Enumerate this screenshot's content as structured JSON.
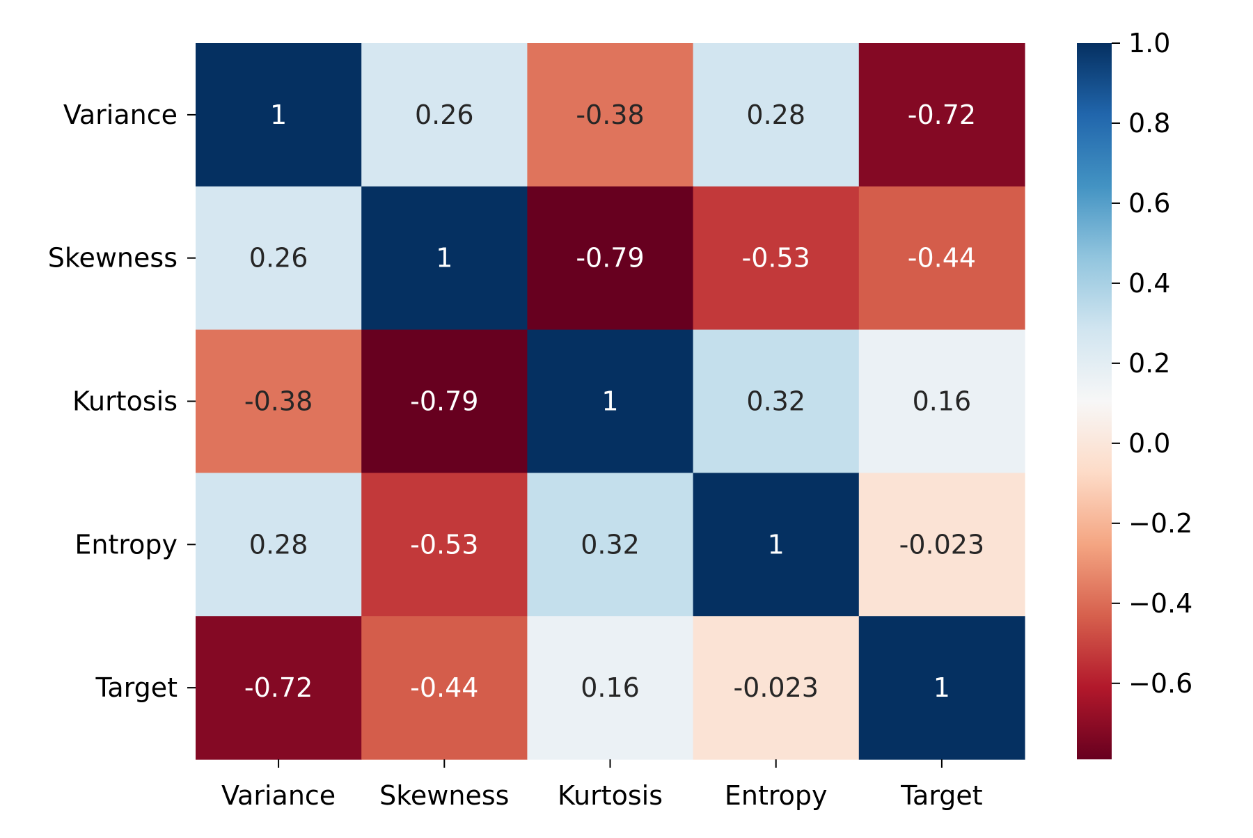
{
  "chart_data": {
    "type": "heatmap",
    "title": "",
    "xlabel": "",
    "ylabel": "",
    "x_categories": [
      "Variance",
      "Skewness",
      "Kurtosis",
      "Entropy",
      "Target"
    ],
    "y_categories": [
      "Variance",
      "Skewness",
      "Kurtosis",
      "Entropy",
      "Target"
    ],
    "values": [
      [
        1,
        0.26,
        -0.38,
        0.28,
        -0.72
      ],
      [
        0.26,
        1,
        -0.79,
        -0.53,
        -0.44
      ],
      [
        -0.38,
        -0.79,
        1,
        0.32,
        0.16
      ],
      [
        0.28,
        -0.53,
        0.32,
        1,
        -0.023
      ],
      [
        -0.72,
        -0.44,
        0.16,
        -0.023,
        1
      ]
    ],
    "cell_labels": [
      [
        "1",
        "0.26",
        "-0.38",
        "0.28",
        "-0.72"
      ],
      [
        "0.26",
        "1",
        "-0.79",
        "-0.53",
        "-0.44"
      ],
      [
        "-0.38",
        "-0.79",
        "1",
        "0.32",
        "0.16"
      ],
      [
        "0.28",
        "-0.53",
        "0.32",
        "1",
        "-0.023"
      ],
      [
        "-0.72",
        "-0.44",
        "0.16",
        "-0.023",
        "1"
      ]
    ],
    "colormap": "RdBu",
    "colormap_stops": [
      "#67001f",
      "#b2182b",
      "#d6604d",
      "#f4a582",
      "#fddbc7",
      "#f7f7f7",
      "#d1e5f0",
      "#92c5de",
      "#4393c3",
      "#2166ac",
      "#053061"
    ],
    "vmin": -0.79,
    "vmax": 1.0,
    "colorbar": {
      "ticks": [
        1.0,
        0.8,
        0.6,
        0.4,
        0.2,
        0.0,
        -0.2,
        -0.4,
        -0.6
      ],
      "tick_labels": [
        "1.0",
        "0.8",
        "0.6",
        "0.4",
        "0.2",
        "0.0",
        "−0.2",
        "−0.4",
        "−0.6"
      ]
    },
    "grid": false,
    "legend": "none"
  }
}
